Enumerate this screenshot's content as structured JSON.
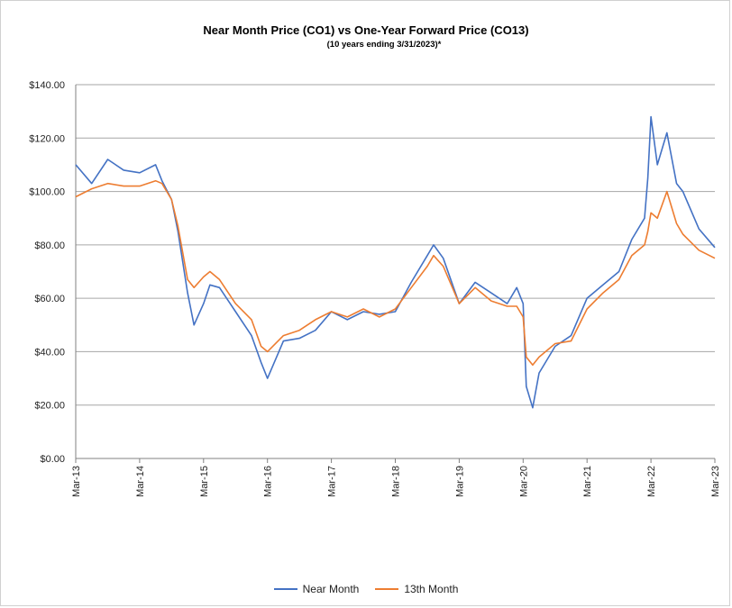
{
  "chart_data": {
    "type": "line",
    "title": "Near Month Price (CO1) vs One-Year Forward Price  (CO13)",
    "subtitle": "(10 years ending  3/31/2023)*",
    "xlabel": "",
    "ylabel": "",
    "ylim": [
      0,
      140
    ],
    "y_ticks": [
      "$0.00",
      "$20.00",
      "$40.00",
      "$60.00",
      "$80.00",
      "$100.00",
      "$120.00",
      "$140.00"
    ],
    "x_ticks": [
      "Mar-13",
      "Mar-14",
      "Mar-15",
      "Mar-16",
      "Mar-17",
      "Mar-18",
      "Mar-19",
      "Mar-20",
      "Mar-21",
      "Mar-22",
      "Mar-23"
    ],
    "grid": "horizontal",
    "legend": "bottom",
    "x_years": [
      0,
      0.25,
      0.5,
      0.75,
      1.0,
      1.25,
      1.35,
      1.5,
      1.6,
      1.75,
      1.85,
      2.0,
      2.1,
      2.25,
      2.5,
      2.75,
      2.9,
      3.0,
      3.25,
      3.5,
      3.75,
      4.0,
      4.25,
      4.5,
      4.75,
      5.0,
      5.25,
      5.5,
      5.6,
      5.75,
      6.0,
      6.25,
      6.5,
      6.75,
      6.9,
      7.0,
      7.05,
      7.15,
      7.25,
      7.5,
      7.75,
      8.0,
      8.25,
      8.5,
      8.7,
      8.9,
      8.95,
      9.0,
      9.1,
      9.25,
      9.4,
      9.5,
      9.75,
      10.0
    ],
    "series": [
      {
        "name": "Near Month",
        "color": "#4472c4",
        "values": [
          110,
          103,
          112,
          108,
          107,
          110,
          104,
          97,
          85,
          62,
          50,
          58,
          65,
          64,
          55,
          46,
          36,
          30,
          44,
          45,
          48,
          55,
          52,
          55,
          54,
          55,
          66,
          76,
          80,
          75,
          58,
          66,
          62,
          58,
          64,
          58,
          27,
          19,
          32,
          42,
          46,
          60,
          65,
          70,
          82,
          90,
          105,
          128,
          110,
          122,
          103,
          100,
          86,
          79
        ]
      },
      {
        "name": "13th Month",
        "color": "#ed7d31",
        "values": [
          98,
          101,
          103,
          102,
          102,
          104,
          103,
          97,
          87,
          67,
          64,
          68,
          70,
          67,
          58,
          52,
          42,
          40,
          46,
          48,
          52,
          55,
          53,
          56,
          53,
          56,
          64,
          72,
          76,
          72,
          58,
          64,
          59,
          57,
          57,
          53,
          38,
          35,
          38,
          43,
          44,
          56,
          62,
          67,
          76,
          80,
          85,
          92,
          90,
          100,
          88,
          84,
          78,
          75
        ]
      }
    ]
  }
}
